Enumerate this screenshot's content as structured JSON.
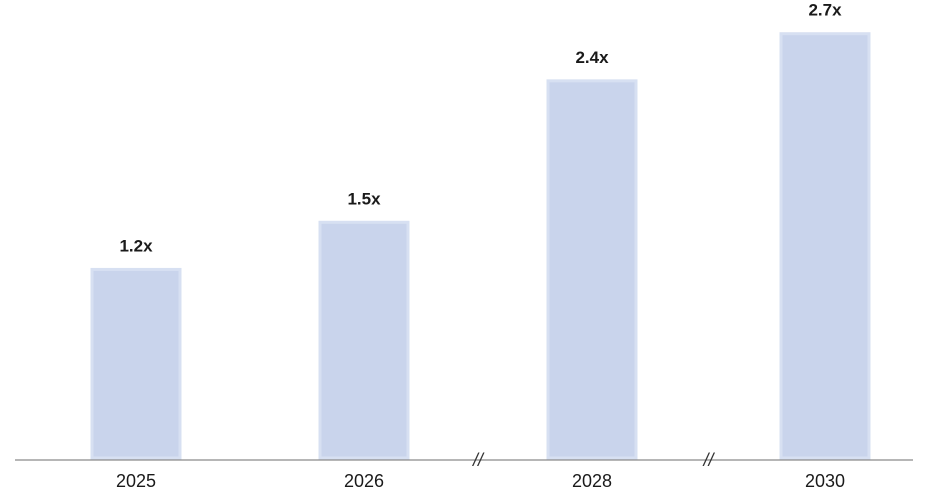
{
  "chart_data": {
    "type": "bar",
    "categories": [
      "2025",
      "2026",
      "2028",
      "2030"
    ],
    "values": [
      1.2,
      1.5,
      2.4,
      2.7
    ],
    "value_labels": [
      "1.2x",
      "1.5x",
      "2.4x",
      "2.7x"
    ],
    "axis_break_symbol": "//",
    "axis_breaks_after": [
      "2026",
      "2028"
    ],
    "ylim": [
      0,
      2.8
    ],
    "grid": false,
    "legend": "none",
    "colors": {
      "bar_fill": "#c9d4ec",
      "bar_edge": "#d7e0f2",
      "axis": "#8a8a8a",
      "text": "#1a1a1a"
    }
  }
}
